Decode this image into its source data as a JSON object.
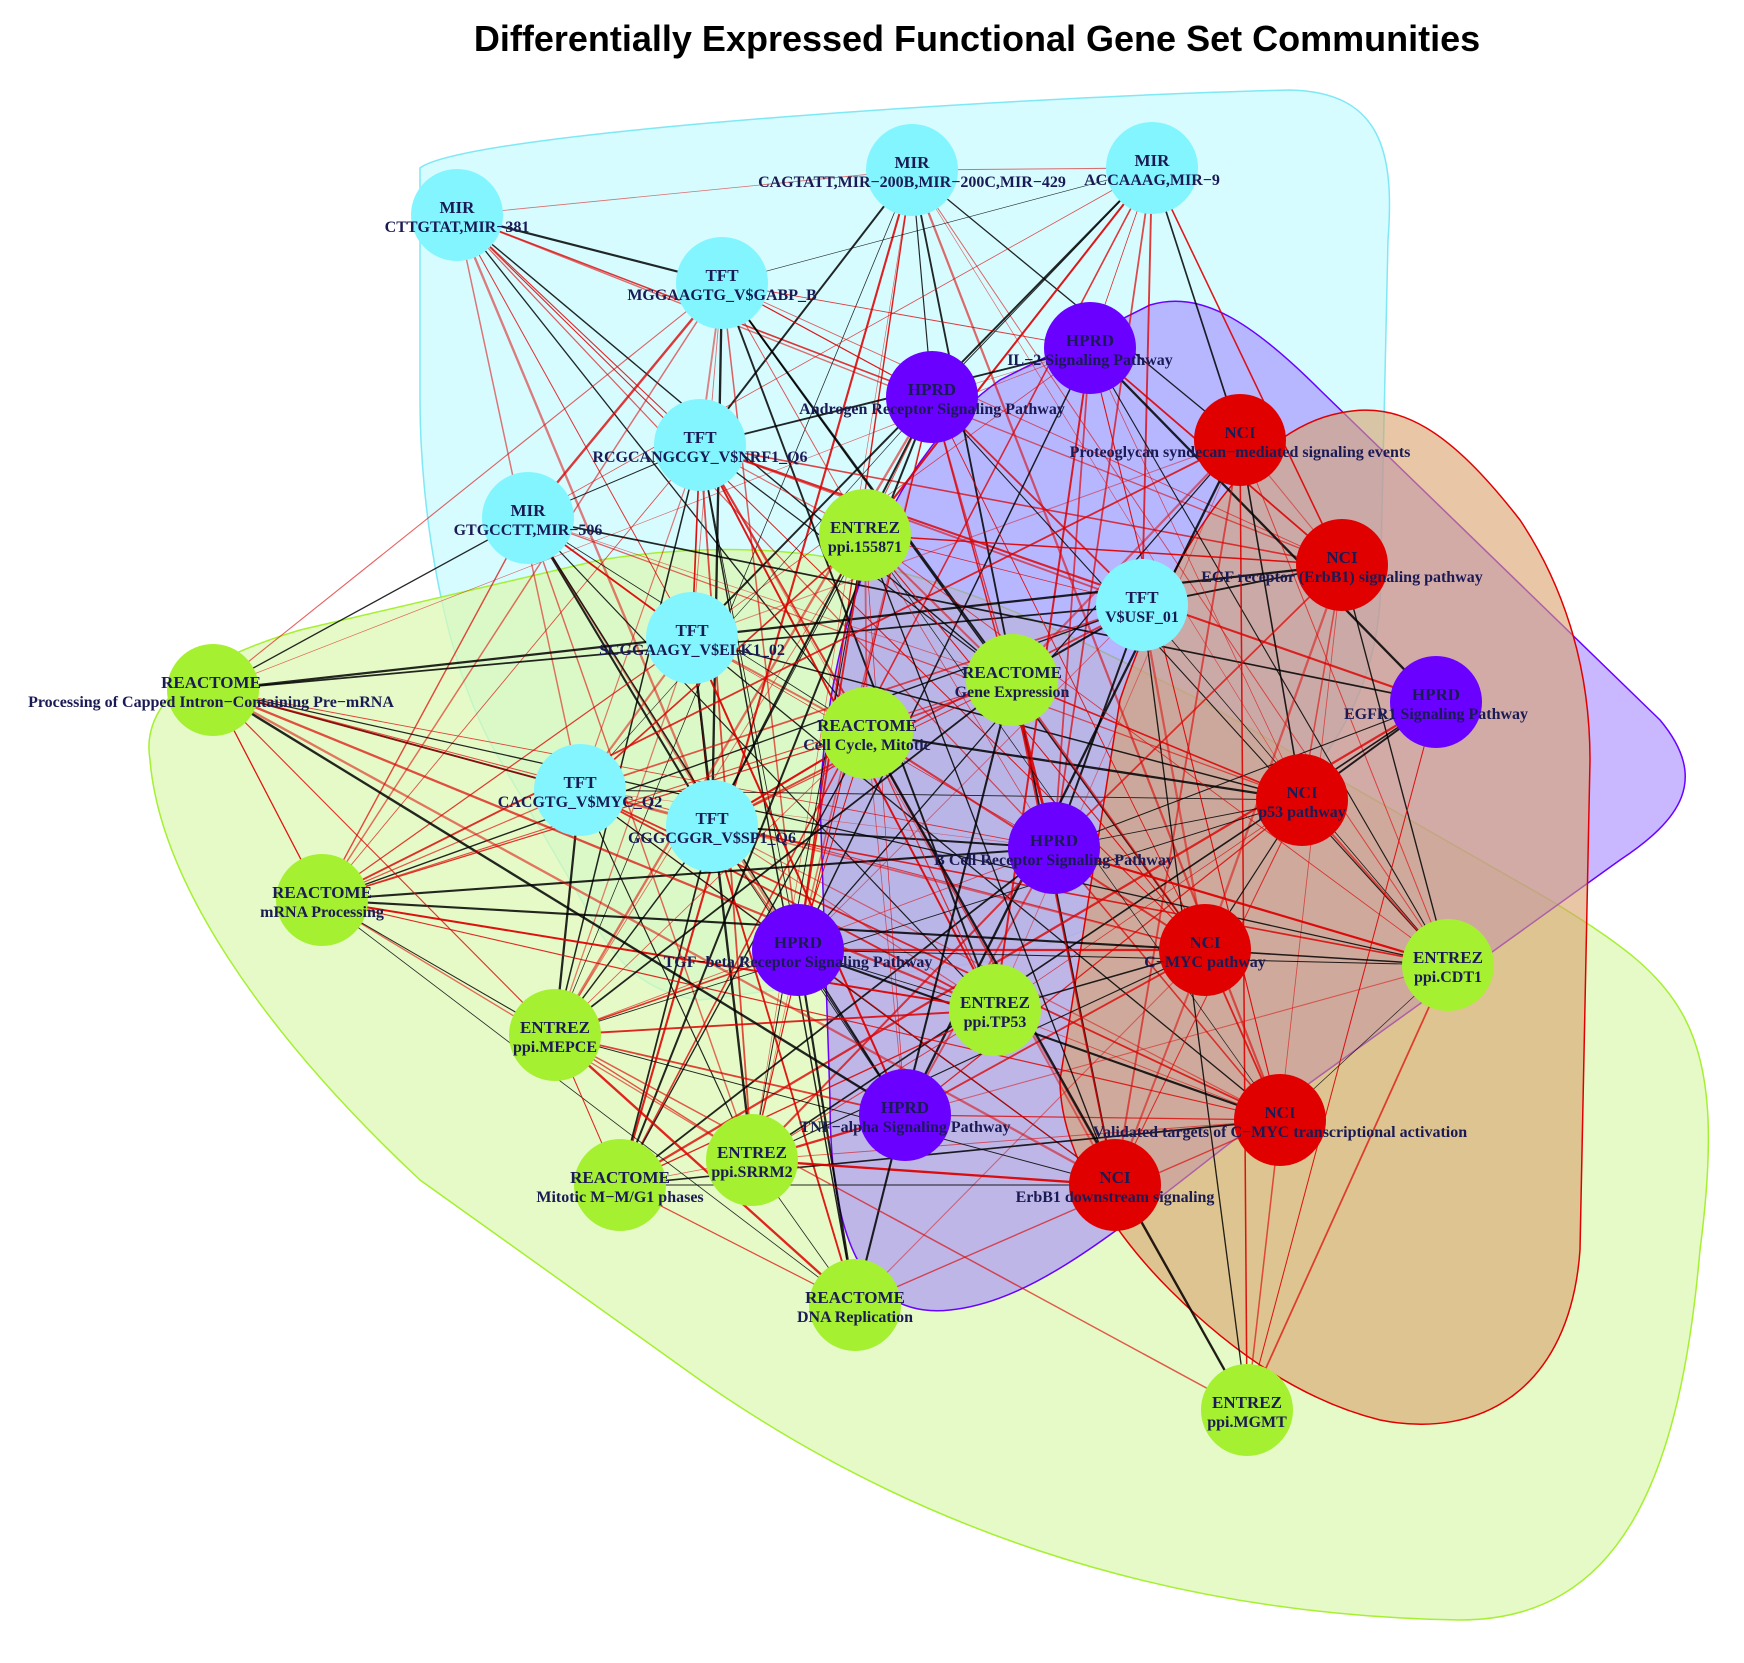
{
  "title": "Differentially Expressed Functional Gene Set Communities",
  "colors": {
    "MIR": "#82f5ff",
    "TFT": "#82f5ff",
    "HPRD": "#6a00ff",
    "NCI": "#e10000",
    "ENTREZ": "#a6f032",
    "REACTOME": "#a6f032",
    "edge_black": "#000000",
    "edge_red": "#dd0000"
  },
  "communities": [
    {
      "name": "cyan",
      "fill": "#c8fbff",
      "stroke": "#7fe8f5"
    },
    {
      "name": "lime",
      "fill": "#dcf8b4",
      "stroke": "#a6f032"
    },
    {
      "name": "purple",
      "fill": "#9c7dff",
      "stroke": "#6a00ff"
    },
    {
      "name": "red",
      "fill": "#d9a06a",
      "stroke": "#e10000"
    }
  ],
  "nodes": [
    {
      "id": "mir381",
      "type": "MIR",
      "name": "CTTGTAT,MIR−381"
    },
    {
      "id": "mir200",
      "type": "MIR",
      "name": "CAGTATT,MIR−200B,MIR−200C,MIR−429"
    },
    {
      "id": "mir9",
      "type": "MIR",
      "name": "ACCAAAG,MIR−9"
    },
    {
      "id": "gabp",
      "type": "TFT",
      "name": "MGGAAGTG_V$GABP_B"
    },
    {
      "id": "nrf1",
      "type": "TFT",
      "name": "RCGCANGCGY_V$NRF1_Q6"
    },
    {
      "id": "mir506",
      "type": "MIR",
      "name": "GTGCCTT,MIR−506"
    },
    {
      "id": "elk1",
      "type": "TFT",
      "name": "SCGGAAGY_V$ELK1_02"
    },
    {
      "id": "myc",
      "type": "TFT",
      "name": "CACGTG_V$MYC_Q2"
    },
    {
      "id": "sp1",
      "type": "TFT",
      "name": "GGGCGGR_V$SP1_Q6"
    },
    {
      "id": "usf",
      "type": "TFT",
      "name": "V$USF_01"
    },
    {
      "id": "il2",
      "type": "HPRD",
      "name": "IL−2 Signaling Pathway"
    },
    {
      "id": "androgen",
      "type": "HPRD",
      "name": "Androgen Receptor Signaling Pathway"
    },
    {
      "id": "proteoglycan",
      "type": "NCI",
      "name": "Proteoglycan syndecan−mediated signaling events"
    },
    {
      "id": "egfr_erbb1",
      "type": "NCI",
      "name": "EGF receptor (ErbB1) signaling pathway"
    },
    {
      "id": "egfr1",
      "type": "HPRD",
      "name": "EGFR1 Signaling Pathway"
    },
    {
      "id": "p53",
      "type": "NCI",
      "name": "p53 pathway"
    },
    {
      "id": "bcell",
      "type": "HPRD",
      "name": "B Cell Receptor Signaling Pathway"
    },
    {
      "id": "cmyc",
      "type": "NCI",
      "name": "C−MYC pathway"
    },
    {
      "id": "tgfb",
      "type": "HPRD",
      "name": "TGF−beta Receptor Signaling Pathway"
    },
    {
      "id": "tp53",
      "type": "ENTREZ",
      "name": "ppi.TP53"
    },
    {
      "id": "tnfa",
      "type": "HPRD",
      "name": "TNF−alpha Signaling Pathway"
    },
    {
      "id": "validated",
      "type": "NCI",
      "name": "Validated targets of C−MYC transcriptional activation"
    },
    {
      "id": "erbb1down",
      "type": "NCI",
      "name": "ErbB1 downstream signaling"
    },
    {
      "id": "ppi155871",
      "type": "ENTREZ",
      "name": "ppi.155871"
    },
    {
      "id": "geneexp",
      "type": "REACTOME",
      "name": "Gene Expression"
    },
    {
      "id": "cellcycle",
      "type": "REACTOME",
      "name": "Cell Cycle, Mitotic"
    },
    {
      "id": "capped",
      "type": "REACTOME",
      "name": "Processing of Capped Intron−Containing Pre−mRNA"
    },
    {
      "id": "mrna",
      "type": "REACTOME",
      "name": "mRNA Processing"
    },
    {
      "id": "mepce",
      "type": "ENTREZ",
      "name": "ppi.MEPCE"
    },
    {
      "id": "mitotic",
      "type": "REACTOME",
      "name": "Mitotic M−M/G1 phases"
    },
    {
      "id": "srrm2",
      "type": "ENTREZ",
      "name": "ppi.SRRM2"
    },
    {
      "id": "dnarep",
      "type": "REACTOME",
      "name": "DNA Replication"
    },
    {
      "id": "cdt1",
      "type": "ENTREZ",
      "name": "ppi.CDT1"
    },
    {
      "id": "mgmt",
      "type": "ENTREZ",
      "name": "ppi.MGMT"
    }
  ]
}
